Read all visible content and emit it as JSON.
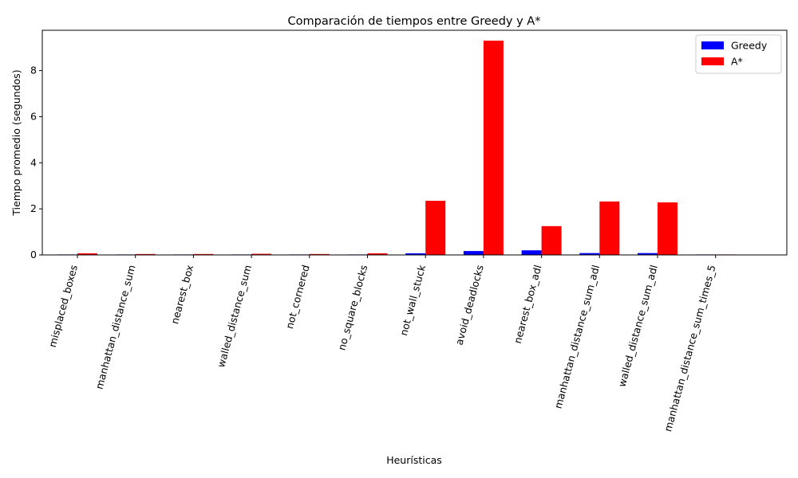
{
  "chart_data": {
    "type": "bar",
    "title": "Comparación de tiempos entre Greedy y A*",
    "xlabel": "Heurísticas",
    "ylabel": "Tiempo promedio (segundos)",
    "ylim": [
      0,
      9.75
    ],
    "yticks": [
      0,
      2,
      4,
      6,
      8
    ],
    "grid": false,
    "legend_position": "top-right",
    "categories": [
      "misplaced_boxes",
      "manhattan_distance_sum",
      "nearest_box",
      "walled_distance_sum",
      "not_cornered",
      "no_square_blocks",
      "not_wall_stuck",
      "avoid_deadlocks",
      "nearest_box_adl",
      "manhattan_distance_sum_adl",
      "walled_distance_sum_adl",
      "manhattan_distance_sum_times_5"
    ],
    "series": [
      {
        "name": "Greedy",
        "color": "#0000ff",
        "values": [
          0.003,
          0.003,
          0.003,
          0.003,
          0.003,
          0.005,
          0.07,
          0.17,
          0.2,
          0.08,
          0.08,
          0.002
        ]
      },
      {
        "name": "A*",
        "color": "#ff0000",
        "values": [
          0.07,
          0.04,
          0.04,
          0.05,
          0.04,
          0.07,
          2.35,
          9.3,
          1.25,
          2.32,
          2.28,
          0.003
        ]
      }
    ]
  }
}
